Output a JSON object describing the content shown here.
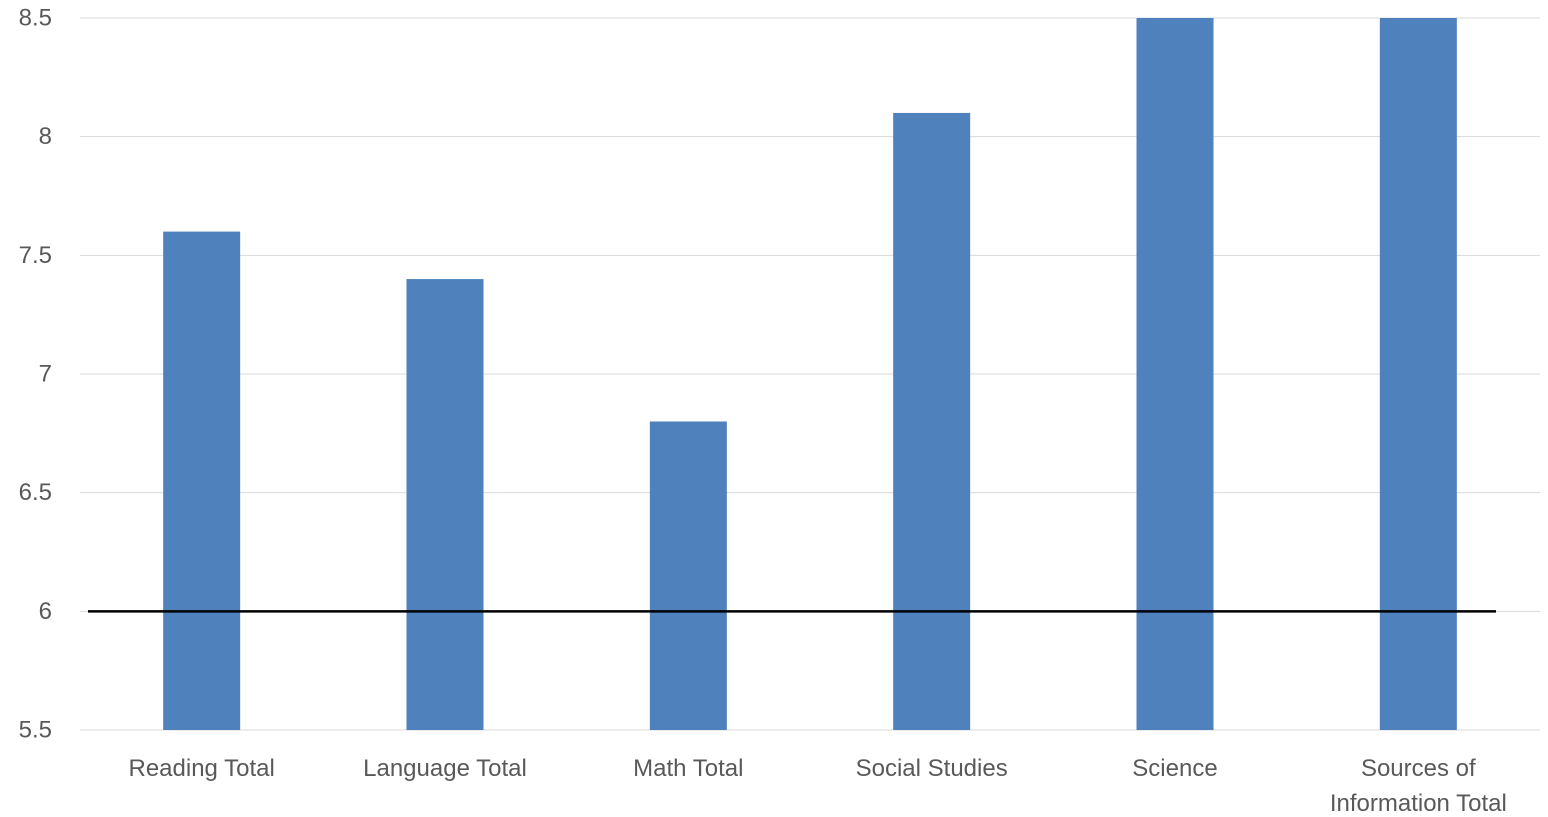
{
  "chart_data": {
    "type": "bar",
    "title": "",
    "xlabel": "",
    "ylabel": "",
    "categories": [
      "Reading Total",
      "Language Total",
      "Math Total",
      "Social Studies",
      "Science",
      "Sources of Information Total"
    ],
    "category_label_lines": [
      [
        "Reading Total"
      ],
      [
        "Language Total"
      ],
      [
        "Math Total"
      ],
      [
        "Social Studies"
      ],
      [
        "Science"
      ],
      [
        "Sources of",
        "Information Total"
      ]
    ],
    "values": [
      7.6,
      7.4,
      6.8,
      8.1,
      8.5,
      8.5
    ],
    "ylim": [
      5.5,
      8.5
    ],
    "yticks": [
      5.5,
      6,
      6.5,
      7,
      7.5,
      8,
      8.5
    ],
    "ytick_labels": [
      "5.5",
      "6",
      "6.5",
      "7",
      "7.5",
      "8",
      "8.5"
    ],
    "reference_line": 6,
    "grid": true,
    "legend": "none",
    "colors": {
      "bar": "#4f81bd",
      "grid": "#d9d9d9",
      "reference_line": "#000000",
      "text": "#595959"
    }
  }
}
